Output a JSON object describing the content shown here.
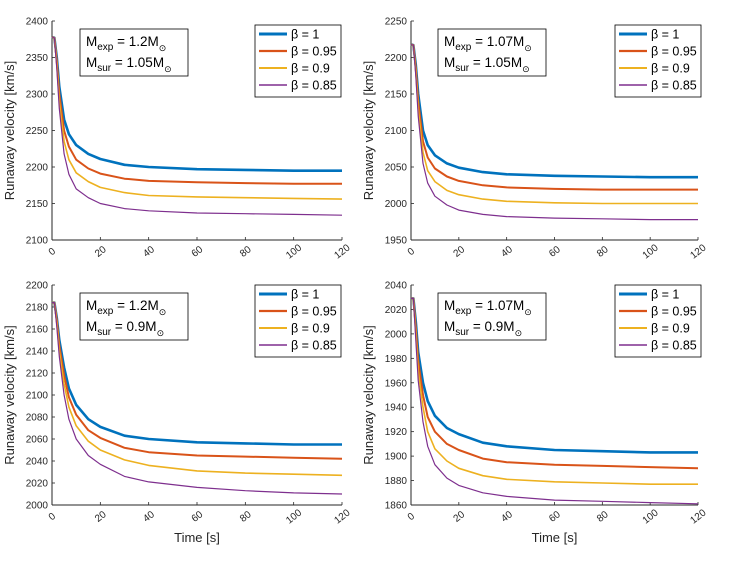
{
  "chart_data": [
    {
      "type": "line",
      "title": "",
      "xlabel": "",
      "ylabel": "Runaway velocity [km/s]",
      "xlim": [
        0,
        120
      ],
      "ylim": [
        2100,
        2400
      ],
      "xticks": [
        "0",
        "20",
        "40",
        "60",
        "80",
        "100",
        "120"
      ],
      "yticks": [
        "2100",
        "2150",
        "2200",
        "2250",
        "2300",
        "2350",
        "2400"
      ],
      "annotation": {
        "exp_label": "M",
        "exp_sub": "exp",
        "exp_value": " = 1.2M",
        "sur_label": "M",
        "sur_sub": "sur",
        "sur_value": " = 1.05M",
        "sun_symbol": "⊙"
      },
      "x": [
        0,
        1,
        2,
        3,
        5,
        7,
        10,
        15,
        20,
        30,
        40,
        60,
        80,
        100,
        120
      ],
      "series": [
        {
          "name": "β = 1",
          "values": [
            2378,
            2377,
            2350,
            2310,
            2265,
            2245,
            2230,
            2218,
            2211,
            2203,
            2200,
            2197,
            2196,
            2195,
            2195
          ]
        },
        {
          "name": "β = 0.95",
          "values": [
            2378,
            2377,
            2345,
            2300,
            2250,
            2228,
            2210,
            2198,
            2191,
            2184,
            2181,
            2179,
            2178,
            2177,
            2177
          ]
        },
        {
          "name": "β = 0.9",
          "values": [
            2378,
            2377,
            2340,
            2290,
            2235,
            2210,
            2192,
            2180,
            2172,
            2165,
            2161,
            2159,
            2158,
            2157,
            2156
          ]
        },
        {
          "name": "β = 0.85",
          "values": [
            2378,
            2377,
            2335,
            2280,
            2218,
            2190,
            2170,
            2158,
            2150,
            2143,
            2140,
            2137,
            2136,
            2135,
            2134
          ]
        }
      ]
    },
    {
      "type": "line",
      "title": "",
      "xlabel": "",
      "ylabel": "Runaway velocity [km/s]",
      "xlim": [
        0,
        120
      ],
      "ylim": [
        1950,
        2250
      ],
      "xticks": [
        "0",
        "20",
        "40",
        "60",
        "80",
        "100",
        "120"
      ],
      "yticks": [
        "1950",
        "2000",
        "2050",
        "2100",
        "2150",
        "2200",
        "2250"
      ],
      "annotation": {
        "exp_label": "M",
        "exp_sub": "exp",
        "exp_value": " = 1.07M",
        "sur_label": "M",
        "sur_sub": "sur",
        "sur_value": " = 1.05M",
        "sun_symbol": "⊙"
      },
      "x": [
        0,
        1,
        2,
        3,
        5,
        7,
        10,
        15,
        20,
        30,
        40,
        60,
        80,
        100,
        120
      ],
      "series": [
        {
          "name": "β = 1",
          "values": [
            2218,
            2217,
            2190,
            2150,
            2100,
            2080,
            2066,
            2055,
            2049,
            2043,
            2040,
            2038,
            2037,
            2036,
            2036
          ]
        },
        {
          "name": "β = 0.95",
          "values": [
            2218,
            2217,
            2185,
            2140,
            2085,
            2063,
            2048,
            2037,
            2031,
            2025,
            2022,
            2020,
            2019,
            2019,
            2019
          ]
        },
        {
          "name": "β = 0.9",
          "values": [
            2218,
            2217,
            2180,
            2130,
            2070,
            2045,
            2030,
            2018,
            2012,
            2006,
            2003,
            2001,
            2000,
            2000,
            2000
          ]
        },
        {
          "name": "β = 0.85",
          "values": [
            2218,
            2217,
            2175,
            2120,
            2055,
            2028,
            2010,
            1998,
            1991,
            1985,
            1982,
            1980,
            1979,
            1978,
            1978
          ]
        }
      ]
    },
    {
      "type": "line",
      "title": "",
      "xlabel": "Time [s]",
      "ylabel": "Runaway velocity [km/s]",
      "xlim": [
        0,
        120
      ],
      "ylim": [
        2000,
        2200
      ],
      "xticks": [
        "0",
        "20",
        "40",
        "60",
        "80",
        "100",
        "120"
      ],
      "yticks": [
        "2000",
        "2020",
        "2040",
        "2060",
        "2080",
        "2100",
        "2120",
        "2140",
        "2160",
        "2180",
        "2200"
      ],
      "annotation": {
        "exp_label": "M",
        "exp_sub": "exp",
        "exp_value": " = 1.2M",
        "sur_label": "M",
        "sur_sub": "sur",
        "sur_value": " = 0.9M",
        "sun_symbol": "⊙"
      },
      "x": [
        0,
        1,
        2,
        3,
        5,
        7,
        10,
        15,
        20,
        30,
        40,
        60,
        80,
        100,
        120
      ],
      "series": [
        {
          "name": "β = 1",
          "values": [
            2184,
            2184,
            2170,
            2150,
            2125,
            2106,
            2091,
            2078,
            2071,
            2063,
            2060,
            2057,
            2056,
            2055,
            2055
          ]
        },
        {
          "name": "β = 0.95",
          "values": [
            2184,
            2184,
            2168,
            2145,
            2118,
            2098,
            2082,
            2068,
            2061,
            2052,
            2048,
            2045,
            2044,
            2043,
            2042
          ]
        },
        {
          "name": "β = 0.9",
          "values": [
            2184,
            2184,
            2165,
            2140,
            2110,
            2089,
            2072,
            2058,
            2050,
            2041,
            2036,
            2031,
            2029,
            2028,
            2027
          ]
        },
        {
          "name": "β = 0.85",
          "values": [
            2184,
            2184,
            2162,
            2135,
            2100,
            2078,
            2060,
            2045,
            2037,
            2026,
            2021,
            2016,
            2013,
            2011,
            2010
          ]
        }
      ]
    },
    {
      "type": "line",
      "title": "",
      "xlabel": "Time [s]",
      "ylabel": "Runaway velocity [km/s]",
      "xlim": [
        0,
        120
      ],
      "ylim": [
        1860,
        2040
      ],
      "xticks": [
        "0",
        "20",
        "40",
        "60",
        "80",
        "100",
        "120"
      ],
      "yticks": [
        "1860",
        "1880",
        "1900",
        "1920",
        "1940",
        "1960",
        "1980",
        "2000",
        "2020",
        "2040"
      ],
      "annotation": {
        "exp_label": "M",
        "exp_sub": "exp",
        "exp_value": " = 1.07M",
        "sur_label": "M",
        "sur_sub": "sur",
        "sur_value": " = 0.9M",
        "sun_symbol": "⊙"
      },
      "x": [
        0,
        1,
        2,
        3,
        5,
        7,
        10,
        15,
        20,
        30,
        40,
        60,
        80,
        100,
        120
      ],
      "series": [
        {
          "name": "β = 1",
          "values": [
            2029,
            2029,
            2010,
            1985,
            1960,
            1945,
            1933,
            1923,
            1918,
            1911,
            1908,
            1905,
            1904,
            1903,
            1903
          ]
        },
        {
          "name": "β = 0.95",
          "values": [
            2029,
            2029,
            2005,
            1978,
            1950,
            1932,
            1920,
            1910,
            1905,
            1898,
            1895,
            1893,
            1892,
            1891,
            1890
          ]
        },
        {
          "name": "β = 0.9",
          "values": [
            2029,
            2029,
            2000,
            1970,
            1940,
            1920,
            1906,
            1896,
            1890,
            1884,
            1881,
            1879,
            1878,
            1877,
            1877
          ]
        },
        {
          "name": "β = 0.85",
          "values": [
            2029,
            2029,
            1995,
            1962,
            1928,
            1908,
            1893,
            1882,
            1876,
            1870,
            1867,
            1864,
            1863,
            1862,
            1861
          ]
        }
      ]
    }
  ],
  "colors": {
    "series": [
      "#0072BD",
      "#D95319",
      "#EDB120",
      "#7E2F8E"
    ],
    "axis": "#262626",
    "box": "#000000"
  }
}
